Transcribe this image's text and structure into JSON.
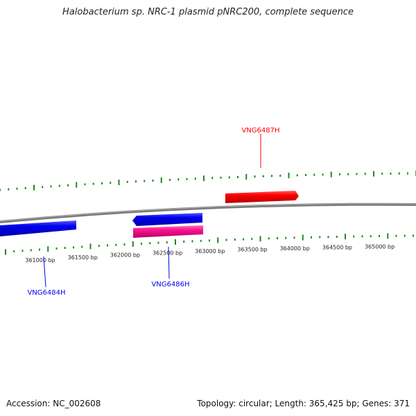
{
  "title": "Halobacterium sp. NRC-1 plasmid pNRC200, complete sequence",
  "footer": {
    "accession": "Accession: NC_002608",
    "summary": "Topology: circular; Length: 365,425 bp; Genes: 371"
  },
  "ruler": {
    "labels": [
      "361000 bp",
      "361500 bp",
      "362000 bp",
      "362500 bp",
      "363000 bp",
      "363500 bp",
      "364000 bp",
      "364500 bp",
      "365000 bp"
    ],
    "tick_color": "#1a8a1a"
  },
  "genes": [
    {
      "name": "VNG6484H",
      "strand": "reverse",
      "color": "#0000ee"
    },
    {
      "name": "VNG6486H",
      "strand": "reverse",
      "color": "#0000ee"
    },
    {
      "name": "VNG6487H",
      "strand": "forward",
      "color": "#ff0000"
    }
  ],
  "colors": {
    "backbone": "#808080",
    "rna_feature": "#ff1493",
    "forward": "#ff0000",
    "reverse": "#0000ee"
  }
}
